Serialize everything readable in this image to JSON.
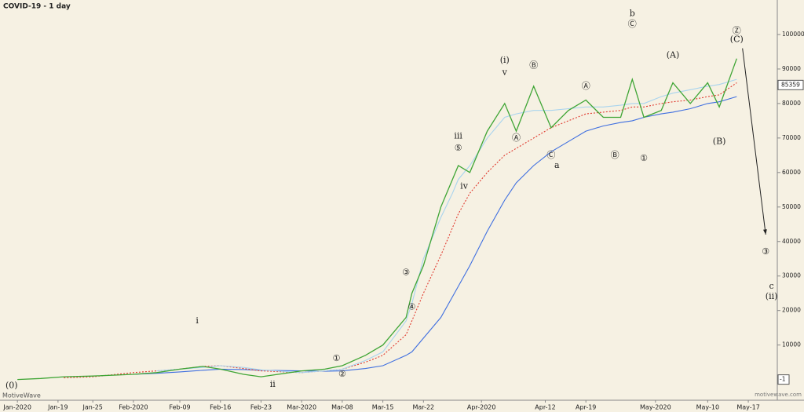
{
  "chart_data": {
    "type": "line",
    "title": "COVID-19 - 1 day",
    "brand": "MotiveWave",
    "watermark": "motivewave.com",
    "last_value": 85359,
    "y_marker": -1,
    "x": [
      "2020-01-12",
      "2020-01-16",
      "2020-01-20",
      "2020-01-25",
      "2020-02-01",
      "2020-02-05",
      "2020-02-09",
      "2020-02-13",
      "2020-02-16",
      "2020-02-20",
      "2020-02-23",
      "2020-03-01",
      "2020-03-05",
      "2020-03-08",
      "2020-03-12",
      "2020-03-15",
      "2020-03-19",
      "2020-03-20",
      "2020-03-22",
      "2020-03-25",
      "2020-03-27",
      "2020-03-28",
      "2020-03-30",
      "2020-04-02",
      "2020-04-05",
      "2020-04-07",
      "2020-04-10",
      "2020-04-13",
      "2020-04-16",
      "2020-04-19",
      "2020-04-22",
      "2020-04-25",
      "2020-04-27",
      "2020-04-29",
      "2020-05-02",
      "2020-05-04",
      "2020-05-07",
      "2020-05-10",
      "2020-05-12",
      "2020-05-15"
    ],
    "series": [
      {
        "color": "#3f6fe0",
        "dash": false,
        "values": [
          null,
          null,
          null,
          null,
          1500,
          1800,
          2200,
          2700,
          3000,
          2900,
          2700,
          2500,
          2400,
          2500,
          3200,
          4000,
          7000,
          8000,
          12000,
          18000,
          24000,
          27000,
          33000,
          43000,
          52000,
          57000,
          62000,
          66000,
          69000,
          72000,
          73500,
          74500,
          75000,
          76000,
          77000,
          77500,
          78500,
          80000,
          80500,
          82000
        ]
      },
      {
        "color": "#e03a2f",
        "dash": true,
        "values": [
          null,
          null,
          500,
          800,
          2000,
          2500,
          3000,
          3800,
          4000,
          3200,
          2500,
          2000,
          2500,
          3000,
          5000,
          7000,
          13000,
          17000,
          25000,
          36000,
          44000,
          48000,
          54000,
          60000,
          65000,
          67000,
          70000,
          73000,
          75000,
          77000,
          77500,
          78000,
          79000,
          79000,
          80000,
          80500,
          81000,
          82000,
          82500,
          86000
        ]
      },
      {
        "color": "#a9d4ee",
        "dash": false,
        "values": [
          null,
          null,
          null,
          null,
          null,
          2500,
          3000,
          3500,
          4000,
          3500,
          2800,
          2000,
          2500,
          3000,
          5500,
          8000,
          17000,
          22000,
          35000,
          47000,
          54000,
          58000,
          62000,
          70000,
          76000,
          77000,
          78000,
          78000,
          78500,
          79000,
          79000,
          79500,
          80000,
          80000,
          82000,
          83000,
          84000,
          85000,
          85500,
          87000
        ]
      },
      {
        "color": "#3fa535",
        "dash": false,
        "values": [
          0,
          300,
          800,
          1000,
          1500,
          2000,
          3000,
          3800,
          3000,
          1500,
          800,
          2500,
          3000,
          4000,
          7000,
          10000,
          18000,
          25000,
          33000,
          50000,
          58000,
          62000,
          60000,
          72000,
          80000,
          72000,
          85000,
          73000,
          78000,
          81000,
          76000,
          76000,
          87000,
          76000,
          78000,
          86000,
          80000,
          86000,
          79000,
          93000
        ]
      }
    ],
    "xlim": [
      "2020-01-09",
      "2020-05-22"
    ],
    "xticks": [
      {
        "value": "2020-01-12",
        "label": "Jan-2020"
      },
      {
        "value": "2020-01-19",
        "label": "Jan-19"
      },
      {
        "value": "2020-01-25",
        "label": "Jan-25"
      },
      {
        "value": "2020-02-01",
        "label": "Feb-2020"
      },
      {
        "value": "2020-02-09",
        "label": "Feb-09"
      },
      {
        "value": "2020-02-16",
        "label": "Feb-16"
      },
      {
        "value": "2020-02-23",
        "label": "Feb-23"
      },
      {
        "value": "2020-03-01",
        "label": "Mar-2020"
      },
      {
        "value": "2020-03-08",
        "label": "Mar-08"
      },
      {
        "value": "2020-03-15",
        "label": "Mar-15"
      },
      {
        "value": "2020-03-22",
        "label": "Mar-22"
      },
      {
        "value": "2020-04-01",
        "label": "Apr-2020"
      },
      {
        "value": "2020-04-12",
        "label": "Apr-12"
      },
      {
        "value": "2020-04-19",
        "label": "Apr-19"
      },
      {
        "value": "2020-05-01",
        "label": "May-2020"
      },
      {
        "value": "2020-05-10",
        "label": "May-10"
      },
      {
        "value": "2020-05-17",
        "label": "May-17"
      }
    ],
    "ylim": [
      -6000,
      110000
    ],
    "yticks": [
      10000,
      20000,
      30000,
      40000,
      50000,
      60000,
      70000,
      80000,
      90000,
      100000
    ],
    "arrow": {
      "x": [
        "2020-05-16",
        "2020-05-20"
      ],
      "y": [
        96000,
        42000
      ]
    },
    "annotations": [
      {
        "text": "(0)",
        "x": "2020-01-11",
        "y": -1800
      },
      {
        "text": "i",
        "x": "2020-02-12",
        "y": 17000
      },
      {
        "text": "ii",
        "x": "2020-02-25",
        "y": -1500
      },
      {
        "text": "①",
        "x": "2020-03-07",
        "y": 6000
      },
      {
        "text": "②",
        "x": "2020-03-08",
        "y": 1500
      },
      {
        "text": "③",
        "x": "2020-03-19",
        "y": 31000
      },
      {
        "text": "④",
        "x": "2020-03-20",
        "y": 21000
      },
      {
        "text": "⑤",
        "x": "2020-03-28",
        "y": 67000
      },
      {
        "text": "iii",
        "x": "2020-03-28",
        "y": 70500
      },
      {
        "text": "iv",
        "x": "2020-03-29",
        "y": 56000
      },
      {
        "text": "(i)",
        "x": "2020-04-05",
        "y": 92500
      },
      {
        "text": "v",
        "x": "2020-04-05",
        "y": 89000
      },
      {
        "text": "Ⓐ",
        "x": "2020-04-07",
        "y": 70000
      },
      {
        "text": "Ⓑ",
        "x": "2020-04-10",
        "y": 91000
      },
      {
        "text": "Ⓒ",
        "x": "2020-04-13",
        "y": 65000
      },
      {
        "text": "a",
        "x": "2020-04-14",
        "y": 62000
      },
      {
        "text": "Ⓐ",
        "x": "2020-04-19",
        "y": 85000
      },
      {
        "text": "Ⓑ",
        "x": "2020-04-24",
        "y": 65000
      },
      {
        "text": "b",
        "x": "2020-04-27",
        "y": 106000
      },
      {
        "text": "Ⓒ",
        "x": "2020-04-27",
        "y": 103000
      },
      {
        "text": "①",
        "x": "2020-04-29",
        "y": 64000
      },
      {
        "text": "(A)",
        "x": "2020-05-04",
        "y": 94000
      },
      {
        "text": "(B)",
        "x": "2020-05-12",
        "y": 69000
      },
      {
        "text": "Ⓩ",
        "x": "2020-05-15",
        "y": 101000
      },
      {
        "text": "(C)",
        "x": "2020-05-15",
        "y": 98500
      },
      {
        "text": "③",
        "x": "2020-05-20",
        "y": 37000
      },
      {
        "text": "c",
        "x": "2020-05-21",
        "y": 27000
      },
      {
        "text": "(ii)",
        "x": "2020-05-21",
        "y": 24000
      }
    ]
  }
}
